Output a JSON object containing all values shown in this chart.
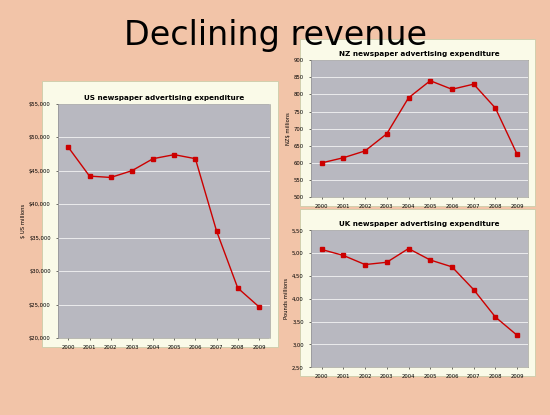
{
  "title": "Declining revenue",
  "bg_color": "#F2C4A8",
  "chart_bg": "#B8B8C0",
  "panel_bg": "#FAFAE8",
  "line_color": "#CC0000",
  "marker": "s",
  "markersize": 2.5,
  "us": {
    "title": "US newspaper advertising expenditure",
    "years": [
      2000,
      2001,
      2002,
      2003,
      2004,
      2005,
      2006,
      2007,
      2008,
      2009
    ],
    "values": [
      48500,
      44200,
      44000,
      45000,
      46800,
      47400,
      46800,
      36000,
      27500,
      24700
    ],
    "ylabel": "$ US millions",
    "ylim": [
      20000,
      55000
    ],
    "yticks": [
      20000,
      25000,
      30000,
      35000,
      40000,
      45000,
      50000,
      55000
    ],
    "ytick_labels": [
      "$20,000",
      "$25,000",
      "$30,000",
      "$35,000",
      "$40,000",
      "$45,000",
      "$50,000",
      "$55,000"
    ]
  },
  "nz": {
    "title": "NZ newspaper advertising expenditure",
    "years": [
      2000,
      2001,
      2002,
      2003,
      2004,
      2005,
      2006,
      2007,
      2008,
      2009
    ],
    "values": [
      600,
      615,
      635,
      685,
      790,
      840,
      815,
      830,
      760,
      625
    ],
    "ylabel": "NZ$ millions",
    "ylim": [
      500,
      900
    ],
    "yticks": [
      500,
      550,
      600,
      650,
      700,
      750,
      800,
      850,
      900
    ],
    "ytick_labels": [
      "500",
      "550",
      "600",
      "650",
      "700",
      "750",
      "800",
      "850",
      "900"
    ]
  },
  "uk": {
    "title": "UK newspaper advertising expenditure",
    "years": [
      2000,
      2001,
      2002,
      2003,
      2004,
      2005,
      2006,
      2007,
      2008,
      2009
    ],
    "values": [
      5.08,
      4.95,
      4.75,
      4.8,
      5.1,
      4.85,
      4.7,
      4.2,
      3.6,
      3.2
    ],
    "ylabel": "Pounds millions",
    "ylim": [
      2.5,
      5.5
    ],
    "yticks": [
      2.5,
      3.0,
      3.5,
      4.0,
      4.5,
      5.0,
      5.5
    ],
    "ytick_labels": [
      "2,50",
      "3,00",
      "3,50",
      "4,00",
      "4,50",
      "5,00",
      "5,50"
    ]
  }
}
